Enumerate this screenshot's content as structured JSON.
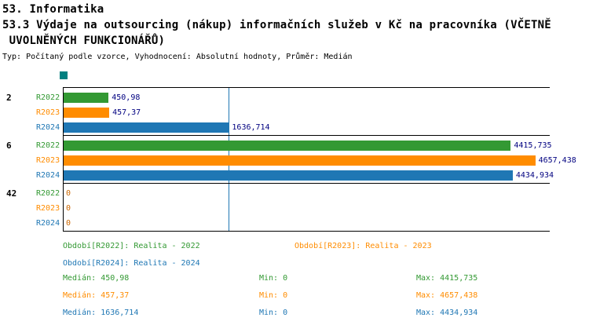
{
  "header": {
    "title": "53. Informatika",
    "subtitle_line1": "53.3 Výdaje na outsourcing (nákup) informačních služeb v Kč na pracovníka (VČETNĚ",
    "subtitle_line2": " UVOLNĚNÝCH FUNKCIONÁŘŮ)",
    "meta": "Typ: Počítaný podle vzorce, Vyhodnocení: Absolutní hodnoty, Průměr: Medián"
  },
  "colors": {
    "series_R2022": "#339933",
    "series_R2023": "#FF8C00",
    "series_R2024": "#1F77B4",
    "value_label": "#000080",
    "zero_label": "#CC6600",
    "marker": "#008080",
    "axis": "#000000"
  },
  "chart_data": {
    "type": "bar",
    "orientation": "horizontal",
    "xmax": 4800,
    "grid": false,
    "series_names": [
      "R2022",
      "R2023",
      "R2024"
    ],
    "groups": [
      {
        "label": "2",
        "bars": [
          {
            "series": "R2022",
            "value": 450.98,
            "display": "450,98"
          },
          {
            "series": "R2023",
            "value": 457.37,
            "display": "457,37"
          },
          {
            "series": "R2024",
            "value": 1636.714,
            "display": "1636,714"
          }
        ]
      },
      {
        "label": "6",
        "bars": [
          {
            "series": "R2022",
            "value": 4415.735,
            "display": "4415,735"
          },
          {
            "series": "R2023",
            "value": 4657.438,
            "display": "4657,438"
          },
          {
            "series": "R2024",
            "value": 4434.934,
            "display": "4434,934"
          }
        ]
      },
      {
        "label": "42",
        "bars": [
          {
            "series": "R2022",
            "value": 0,
            "display": "0"
          },
          {
            "series": "R2023",
            "value": 0,
            "display": "0"
          },
          {
            "series": "R2024",
            "value": 0,
            "display": "0"
          }
        ]
      }
    ],
    "median_line": {
      "series": "R2024",
      "value": 1636.714
    }
  },
  "legend": {
    "items": [
      {
        "series": "R2022",
        "label": "Období[R2022]:",
        "value": "Realita - 2022"
      },
      {
        "series": "R2023",
        "label": "Období[R2023]:",
        "value": "Realita - 2023"
      },
      {
        "series": "R2024",
        "label": "Období[R2024]:",
        "value": "Realita - 2024"
      }
    ]
  },
  "stats": {
    "labels": {
      "median": "Medián:",
      "min": "Min:",
      "max": "Max:"
    },
    "rows": [
      {
        "series": "R2022",
        "median": "450,98",
        "min": "0",
        "max": "4415,735"
      },
      {
        "series": "R2023",
        "median": "457,37",
        "min": "0",
        "max": "4657,438"
      },
      {
        "series": "R2024",
        "median": "1636,714",
        "min": "0",
        "max": "4434,934"
      }
    ]
  }
}
